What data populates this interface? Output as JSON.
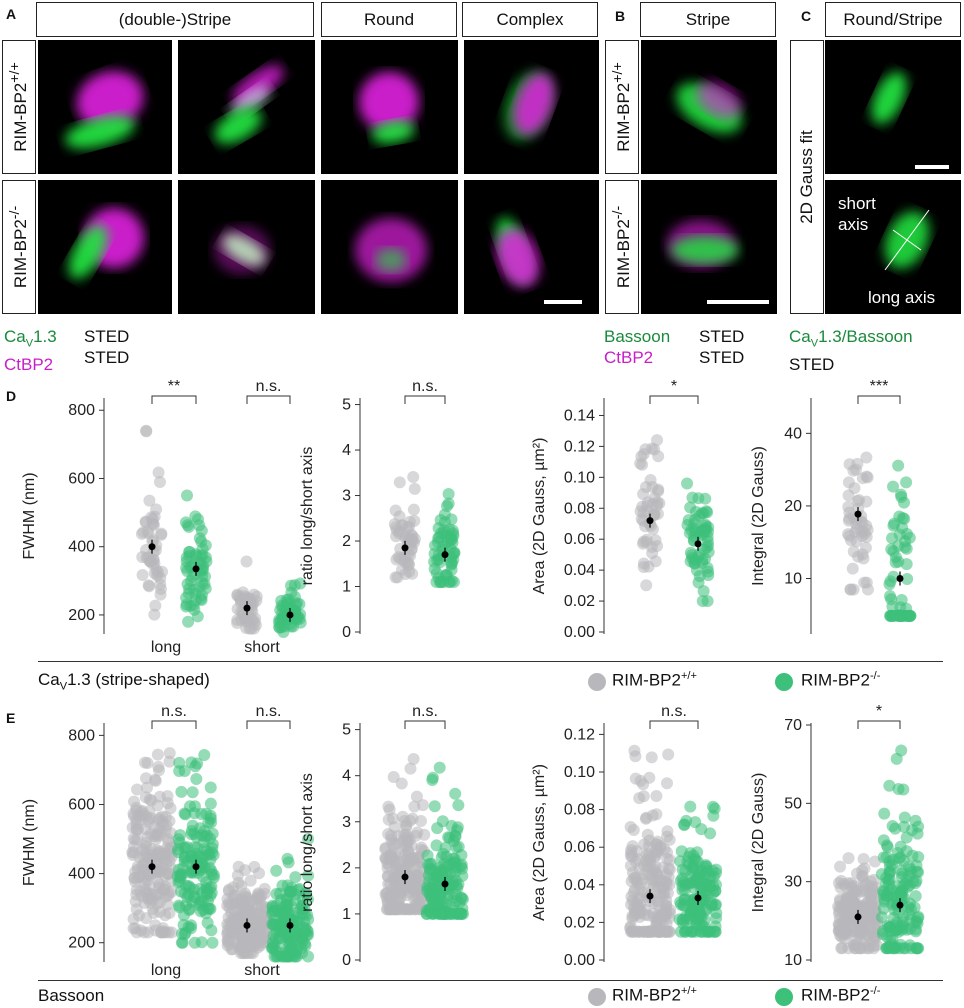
{
  "panel_letters": [
    "A",
    "B",
    "C",
    "D",
    "E"
  ],
  "headers": {
    "a1": "(double-)Stripe",
    "a2": "Round",
    "a3": "Complex",
    "b": "Stripe",
    "c": "Round/Stripe"
  },
  "row_labels": {
    "wt": "RIM-BP2",
    "wt_sup": "+/+",
    "ko": "RIM-BP2",
    "ko_sup": "-/-",
    "gauss": "2D Gauss fit"
  },
  "overlay": {
    "short_axis_1": "short",
    "short_axis_2": "axis",
    "long_axis": "long axis"
  },
  "legends": {
    "a_ch1": "Ca",
    "a_ch1_sub": "V",
    "a_ch1_rest": "1.3",
    "a_ch2": "CtBP2",
    "a_sted": "STED",
    "b_ch1": "Bassoon",
    "b_ch2": "CtBP2",
    "b_sted": "STED",
    "c_ch1": "Ca",
    "c_ch1_sub": "V",
    "c_ch1_rest": "1.3/Bassoon",
    "c_sted": "STED"
  },
  "colors": {
    "green": "#1a8a3c",
    "magenta": "#c81fc8",
    "wt_dot": "#b8b8bc",
    "ko_dot": "#3cc07a"
  },
  "footer_d": {
    "label_main": "Ca",
    "label_sub": "V",
    "label_rest": "1.3 (stripe-shaped)",
    "legend_wt": "RIM-BP2",
    "legend_wt_sup": "+/+",
    "legend_ko": "RIM-BP2",
    "legend_ko_sup": "-/-"
  },
  "footer_e": {
    "label": "Bassoon",
    "legend_wt": "RIM-BP2",
    "legend_wt_sup": "+/+",
    "legend_ko": "RIM-BP2",
    "legend_ko_sup": "-/-"
  },
  "chart_data": [
    {
      "id": "D1",
      "type": "scatter",
      "ylabel": "FWHM (nm)",
      "yticks": [
        200,
        400,
        600,
        800
      ],
      "ylim": [
        150,
        830
      ],
      "groups": [
        {
          "label": "long",
          "sig": "**",
          "wt": {
            "mean": 400,
            "n": 50,
            "lo": 200,
            "hi": 740
          },
          "ko": {
            "mean": 335,
            "n": 60,
            "lo": 180,
            "hi": 550
          }
        },
        {
          "label": "short",
          "sig": "n.s.",
          "wt": {
            "mean": 220,
            "n": 50,
            "lo": 160,
            "hi": 360
          },
          "ko": {
            "mean": 200,
            "n": 60,
            "lo": 150,
            "hi": 300
          }
        }
      ]
    },
    {
      "id": "D2",
      "type": "scatter",
      "ylabel": "ratio long/short axis",
      "yticks": [
        0,
        1,
        2,
        3,
        4,
        5
      ],
      "ylim": [
        0,
        5.1
      ],
      "groups": [
        {
          "label": "",
          "sig": "n.s.",
          "wt": {
            "mean": 1.85,
            "n": 50,
            "lo": 1.2,
            "hi": 3.5
          },
          "ko": {
            "mean": 1.7,
            "n": 60,
            "lo": 1.1,
            "hi": 3.4
          }
        }
      ]
    },
    {
      "id": "D3",
      "type": "scatter",
      "ylabel": "Area (2D Gauss, µm²)",
      "yticks": [
        0.0,
        0.02,
        0.04,
        0.06,
        0.08,
        0.1,
        0.12,
        0.14
      ],
      "ylim": [
        0,
        0.15
      ],
      "groups": [
        {
          "label": "",
          "sig": "*",
          "wt": {
            "mean": 0.072,
            "n": 50,
            "lo": 0.025,
            "hi": 0.14
          },
          "ko": {
            "mean": 0.057,
            "n": 60,
            "lo": 0.02,
            "hi": 0.115
          }
        }
      ]
    },
    {
      "id": "D4",
      "type": "scatter",
      "ylabel": "Integral (2D Gauss)",
      "yticks": [
        10,
        20,
        40
      ],
      "ylim": [
        6,
        55
      ],
      "log": true,
      "groups": [
        {
          "label": "",
          "sig": "***",
          "wt": {
            "mean": 18.5,
            "n": 50,
            "lo": 9,
            "hi": 45
          },
          "ko": {
            "mean": 10,
            "n": 60,
            "lo": 7,
            "hi": 40
          }
        }
      ]
    },
    {
      "id": "E1",
      "type": "scatter",
      "ylabel": "FWHM (nm)",
      "yticks": [
        200,
        400,
        600,
        800
      ],
      "ylim": [
        150,
        830
      ],
      "groups": [
        {
          "label": "long",
          "sig": "n.s.",
          "wt": {
            "mean": 420,
            "n": 200,
            "lo": 230,
            "hi": 810
          },
          "ko": {
            "mean": 420,
            "n": 150,
            "lo": 200,
            "hi": 760
          }
        },
        {
          "label": "short",
          "sig": "n.s.",
          "wt": {
            "mean": 250,
            "n": 200,
            "lo": 170,
            "hi": 420
          },
          "ko": {
            "mean": 250,
            "n": 150,
            "lo": 160,
            "hi": 500
          }
        }
      ]
    },
    {
      "id": "E2",
      "type": "scatter",
      "ylabel": "ratio long/short axis",
      "yticks": [
        0,
        1,
        2,
        3,
        4,
        5
      ],
      "ylim": [
        0,
        5.1
      ],
      "groups": [
        {
          "label": "",
          "sig": "n.s.",
          "wt": {
            "mean": 1.8,
            "n": 200,
            "lo": 1.1,
            "hi": 4.4
          },
          "ko": {
            "mean": 1.65,
            "n": 150,
            "lo": 1.0,
            "hi": 4.5
          }
        }
      ]
    },
    {
      "id": "E3",
      "type": "scatter",
      "ylabel": "Area (2D Gauss, µm²)",
      "yticks": [
        0.0,
        0.02,
        0.04,
        0.06,
        0.08,
        0.1,
        0.12
      ],
      "ylim": [
        0,
        0.125
      ],
      "groups": [
        {
          "label": "",
          "sig": "n.s.",
          "wt": {
            "mean": 0.034,
            "n": 200,
            "lo": 0.015,
            "hi": 0.112
          },
          "ko": {
            "mean": 0.033,
            "n": 150,
            "lo": 0.015,
            "hi": 0.084
          }
        }
      ]
    },
    {
      "id": "E4",
      "type": "scatter",
      "ylabel": "Integral (2D Gauss)",
      "yticks": [
        10,
        30,
        50,
        70
      ],
      "ylim": [
        10,
        70
      ],
      "groups": [
        {
          "label": "",
          "sig": "*",
          "wt": {
            "mean": 21,
            "n": 200,
            "lo": 13,
            "hi": 37
          },
          "ko": {
            "mean": 24,
            "n": 150,
            "lo": 13,
            "hi": 64
          }
        }
      ]
    }
  ]
}
